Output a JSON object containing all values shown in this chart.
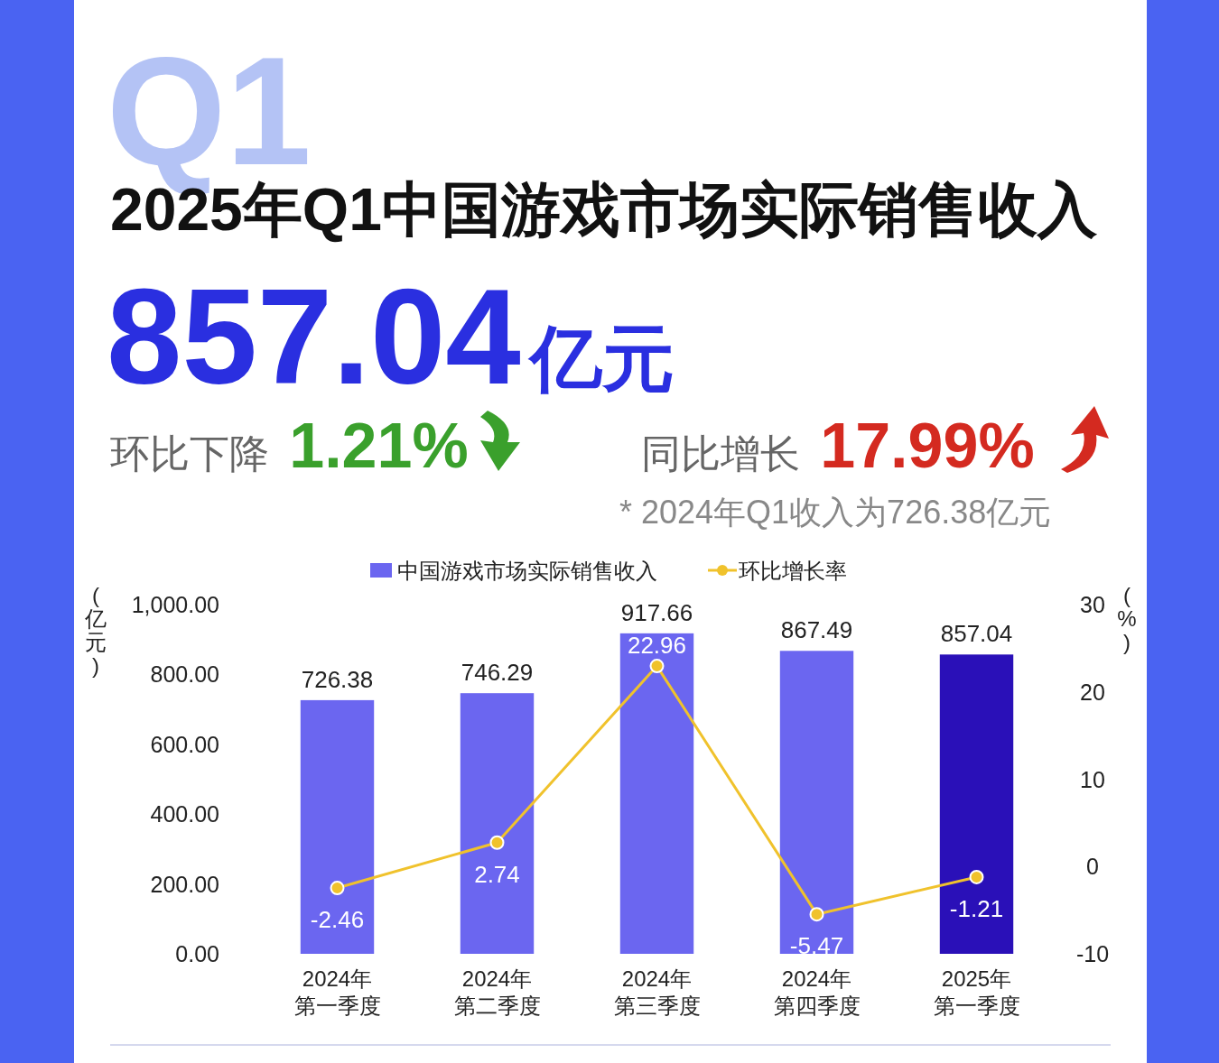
{
  "chart_data": {
    "type": "bar",
    "title": "2025年Q1中国游戏市场实际销售收入",
    "annotations": [
      "Q1",
      "857.04亿元",
      "环比下降 1.21%",
      "同比增长 17.99%",
      "* 2024年Q1收入为726.38亿元"
    ],
    "categories": [
      "2024年第一季度",
      "2024年第二季度",
      "2024年第三季度",
      "2024年第四季度",
      "2025年第一季度"
    ],
    "series": [
      {
        "name": "中国游戏市场实际销售收入",
        "colors": [
          "#6b66f0",
          "#6b66f0",
          "#6b66f0",
          "#6b66f0",
          "#2a10b8"
        ],
        "color": "#6b66f0",
        "values": [
          726.38,
          746.29,
          917.66,
          867.49,
          857.04
        ]
      },
      {
        "name": "环比增长率",
        "type": "line",
        "axis": "y2",
        "color": "#f0c22c",
        "values": [
          -2.46,
          2.74,
          22.96,
          -5.47,
          -1.21
        ]
      }
    ],
    "ylabel": "(亿元)",
    "y2label": "(%)",
    "ylim": [
      0,
      1000
    ],
    "yticks": [
      {
        "value": 0,
        "label": "0.00"
      },
      {
        "value": 200,
        "label": "200.00"
      },
      {
        "value": 400,
        "label": "400.00"
      },
      {
        "value": 600,
        "label": "600.00"
      },
      {
        "value": 800,
        "label": "800.00"
      },
      {
        "value": 1000,
        "label": "1,000.00"
      }
    ],
    "y2lim": [
      -10,
      30
    ],
    "y2ticks": [
      -10,
      0,
      10,
      20,
      30
    ],
    "legend": "top",
    "marker": "circle",
    "data_labels": true
  }
}
